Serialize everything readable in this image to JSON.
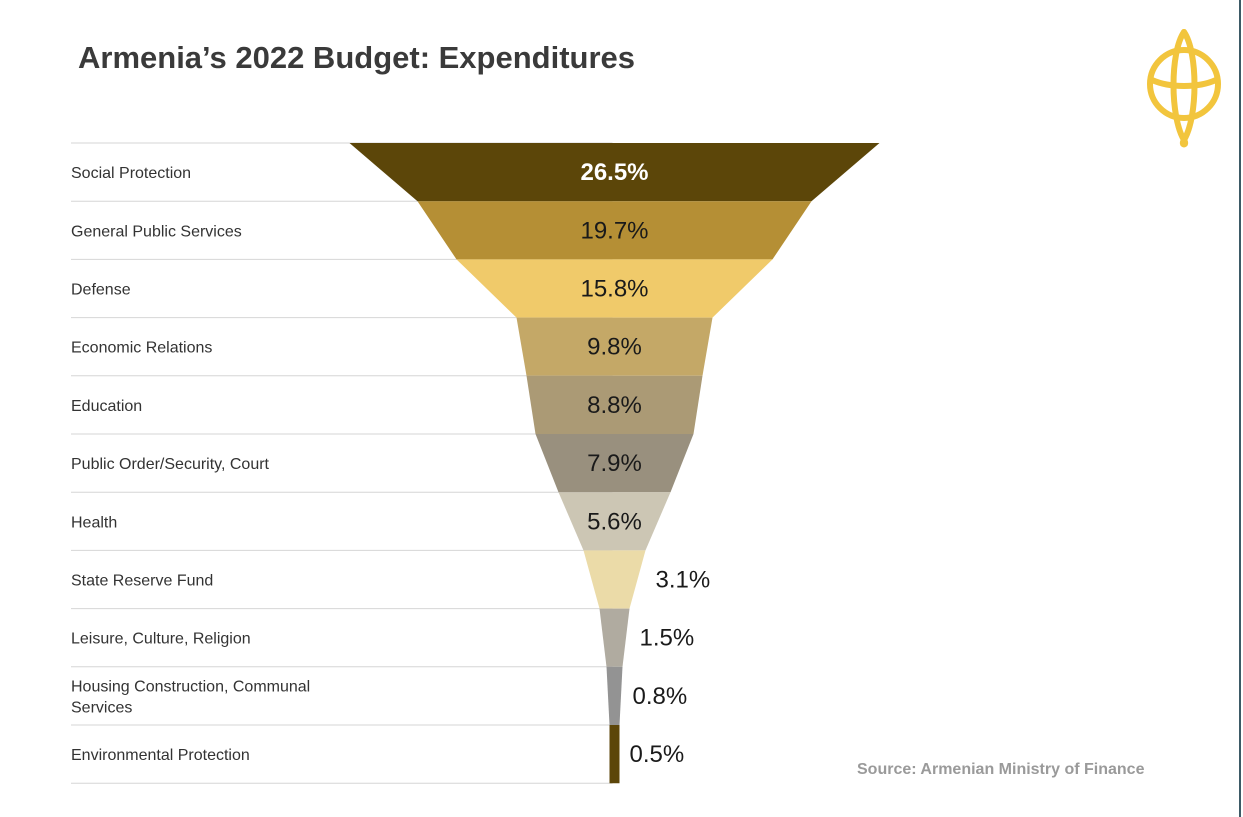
{
  "title": "Armenia’s 2022 Budget: Expendi­tures",
  "source": "Source: Armenian Ministry of Finance",
  "logo": {
    "icon": "globe-emblem-icon",
    "color": "#f2c53d"
  },
  "chart_data": {
    "type": "funnel",
    "title": "Armenia’s 2022 Budget: Expenditures",
    "unit": "%",
    "categories": [
      "Social Protection",
      "General Public Services",
      "Defense",
      "Economic Relations",
      "Education",
      "Public Order/Security, Court",
      "Health",
      "State Reserve Fund",
      "Leisure, Culture, Religion",
      "Housing Construction, Communal Services",
      "Environmental Protection"
    ],
    "values": [
      26.5,
      19.7,
      15.8,
      9.8,
      8.8,
      7.9,
      5.6,
      3.1,
      1.5,
      0.8,
      0.5
    ],
    "labels": [
      "26.5%",
      "19.7%",
      "15.8%",
      "9.8%",
      "8.8%",
      "7.9%",
      "5.6%",
      "3.1%",
      "1.5%",
      "0.8%",
      "0.5%"
    ],
    "colors": [
      "#5c4609",
      "#b58f35",
      "#f0ca6a",
      "#c4a867",
      "#ab9a75",
      "#99907e",
      "#ccc6b4",
      "#ebdba8",
      "#b0aba0",
      "#939393",
      "#5c4609"
    ]
  }
}
